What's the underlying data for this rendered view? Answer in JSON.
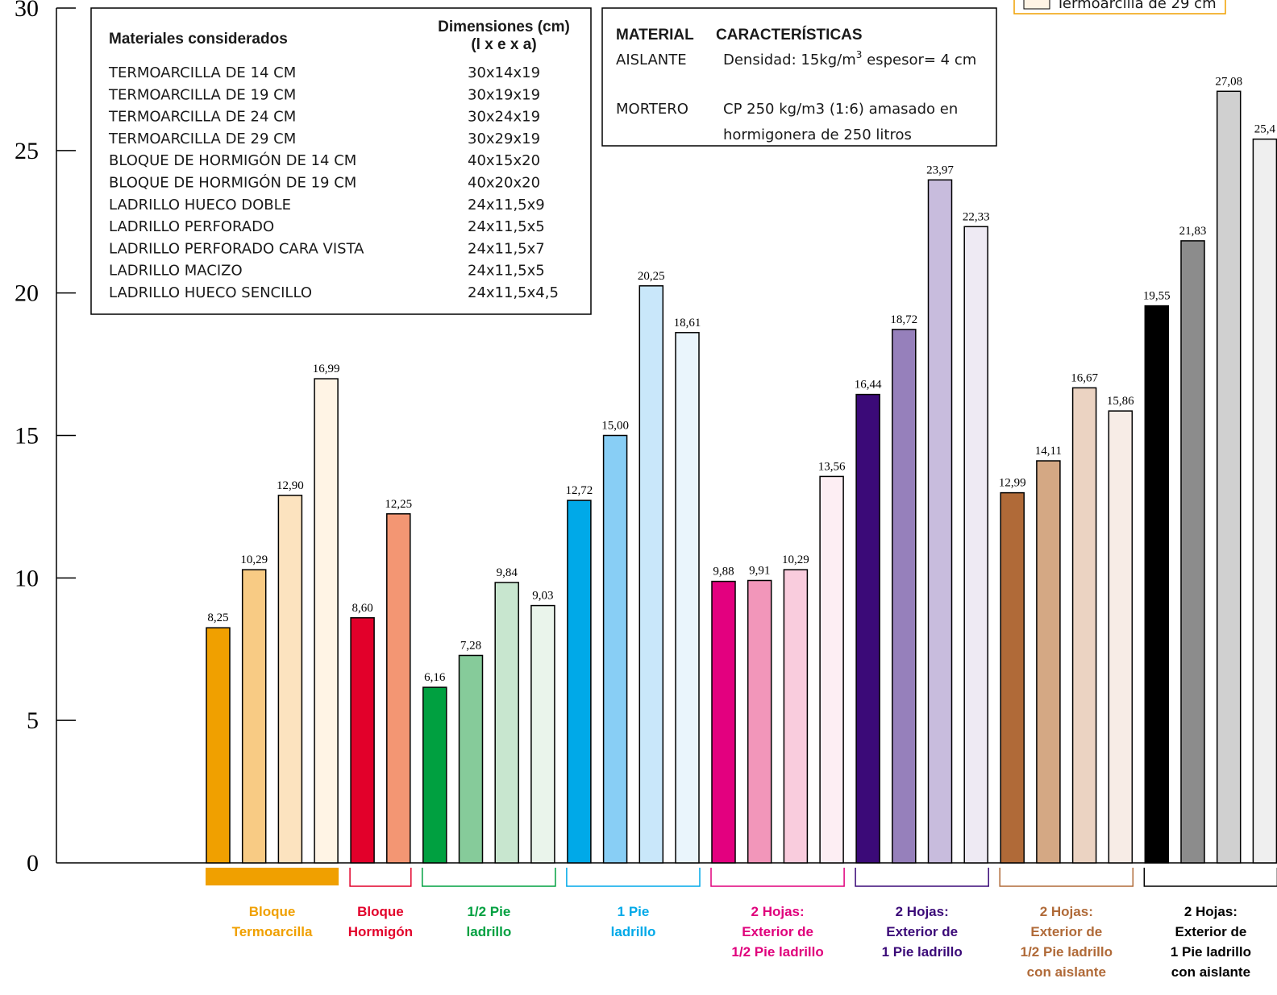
{
  "chart_data": {
    "type": "bar",
    "ylim": [
      0,
      30
    ],
    "yticks": [
      "0",
      "5",
      "10",
      "15",
      "20",
      "25",
      "30"
    ],
    "groups": [
      {
        "label": [
          "Bloque",
          "Termoarcilla"
        ],
        "color": "#F0A000",
        "bracket": "solid",
        "values": [
          8.25,
          10.29,
          12.9,
          16.99
        ],
        "labels": [
          "8,25",
          "10,29",
          "12,90",
          "16,99"
        ],
        "fills": [
          "#F0A000",
          "#F8CB84",
          "#FCE3BF",
          "#FFF4E5"
        ]
      },
      {
        "label": [
          "Bloque",
          "Hormigón"
        ],
        "color": "#E2002A",
        "bracket": "line",
        "values": [
          8.6,
          12.25
        ],
        "labels": [
          "8,60",
          "12,25"
        ],
        "fills": [
          "#E2002A",
          "#F39673"
        ]
      },
      {
        "label": [
          "1/2 Pie",
          "ladrillo"
        ],
        "color": "#00A040",
        "bracket": "line",
        "values": [
          6.16,
          7.28,
          9.84,
          9.03
        ],
        "labels": [
          "6,16",
          "7,28",
          "9,84",
          "9,03"
        ],
        "fills": [
          "#00A040",
          "#86CB9A",
          "#C8E6CF",
          "#EAF4EB"
        ]
      },
      {
        "label": [
          "1 Pie",
          "ladrillo"
        ],
        "color": "#00A9E8",
        "bracket": "line",
        "values": [
          12.72,
          15.0,
          20.25,
          18.61
        ],
        "labels": [
          "12,72",
          "15,00",
          "20,25",
          "18,61"
        ],
        "fills": [
          "#00A9E8",
          "#88CEF5",
          "#C9E7FA",
          "#EAF5FC"
        ]
      },
      {
        "label": [
          "2 Hojas:",
          "Exterior de",
          "1/2 Pie ladrillo"
        ],
        "color": "#E0007C",
        "bracket": "line",
        "values": [
          9.88,
          9.91,
          10.29,
          13.56
        ],
        "labels": [
          "9,88",
          "9,91",
          "10,29",
          "13,56"
        ],
        "fills": [
          "#E3007F",
          "#F296BA",
          "#F9CCDD",
          "#FDEEF3"
        ]
      },
      {
        "label": [
          "2 Hojas:",
          "Exterior de",
          "1 Pie ladrillo"
        ],
        "color": "#3B0A78",
        "bracket": "line",
        "values": [
          16.44,
          18.72,
          23.97,
          22.33
        ],
        "labels": [
          "16,44",
          "18,72",
          "23,97",
          "22,33"
        ],
        "fills": [
          "#3B0A78",
          "#9680BB",
          "#C8BCDD",
          "#EEEAF3"
        ]
      },
      {
        "label": [
          "2 Hojas:",
          "Exterior de",
          "1/2 Pie ladrillo",
          "con aislante"
        ],
        "color": "#B06A38",
        "bracket": "line",
        "values": [
          12.99,
          14.11,
          16.67,
          15.86
        ],
        "labels": [
          "12,99",
          "14,11",
          "16,67",
          "15,86"
        ],
        "fills": [
          "#B06A38",
          "#D4A884",
          "#EBD3C2",
          "#F7ECE6"
        ]
      },
      {
        "label": [
          "2 Hojas:",
          "Exterior de",
          "1 Pie ladrillo",
          "con aislante"
        ],
        "color": "#000000",
        "bracket": "line",
        "values": [
          19.55,
          21.83,
          27.08,
          25.4
        ],
        "labels": [
          "19,55",
          "21,83",
          "27,08",
          "25,4"
        ],
        "fills": [
          "#000000",
          "#8C8C8C",
          "#D0D0D0",
          "#EFEFEF"
        ]
      }
    ],
    "legend": {
      "label": "Termoarcilla de 29 cm",
      "swatch_color": "#FFF4E5",
      "border_color": "#F0A000"
    }
  },
  "materials_box": {
    "header_left": "Materiales considerados",
    "header_right": [
      "Dimensiones (cm)",
      "(l x e x a)"
    ],
    "rows": [
      {
        "name": "TERMOARCILLA DE 14 CM",
        "dims": "30x14x19"
      },
      {
        "name": "TERMOARCILLA DE 19 CM",
        "dims": "30x19x19"
      },
      {
        "name": "TERMOARCILLA DE 24 CM",
        "dims": "30x24x19"
      },
      {
        "name": "TERMOARCILLA DE 29 CM",
        "dims": "30x29x19"
      },
      {
        "name": "BLOQUE DE HORMIGÓN DE 14 CM",
        "dims": "40x15x20"
      },
      {
        "name": "BLOQUE DE HORMIGÓN DE 19 CM",
        "dims": "40x20x20"
      },
      {
        "name": "LADRILLO HUECO DOBLE",
        "dims": "24x11,5x9"
      },
      {
        "name": "LADRILLO PERFORADO",
        "dims": "24x11,5x5"
      },
      {
        "name": "LADRILLO PERFORADO CARA VISTA",
        "dims": "24x11,5x7"
      },
      {
        "name": "LADRILLO MACIZO",
        "dims": "24x11,5x5"
      },
      {
        "name": "LADRILLO HUECO SENCILLO",
        "dims": "24x11,5x4,5"
      }
    ]
  },
  "properties_box": {
    "header_material": "MATERIAL",
    "header_features": "CARACTERÍSTICAS",
    "aislante": {
      "name": "AISLANTE",
      "text": "Densidad: 15kg/m",
      "sup": "3",
      "text2": " espesor= 4 cm"
    },
    "mortero": {
      "name": "MORTERO",
      "line1": "CP 250 kg/m3 (1:6) amasado en",
      "line2": "hormigonera de 250 litros"
    }
  }
}
